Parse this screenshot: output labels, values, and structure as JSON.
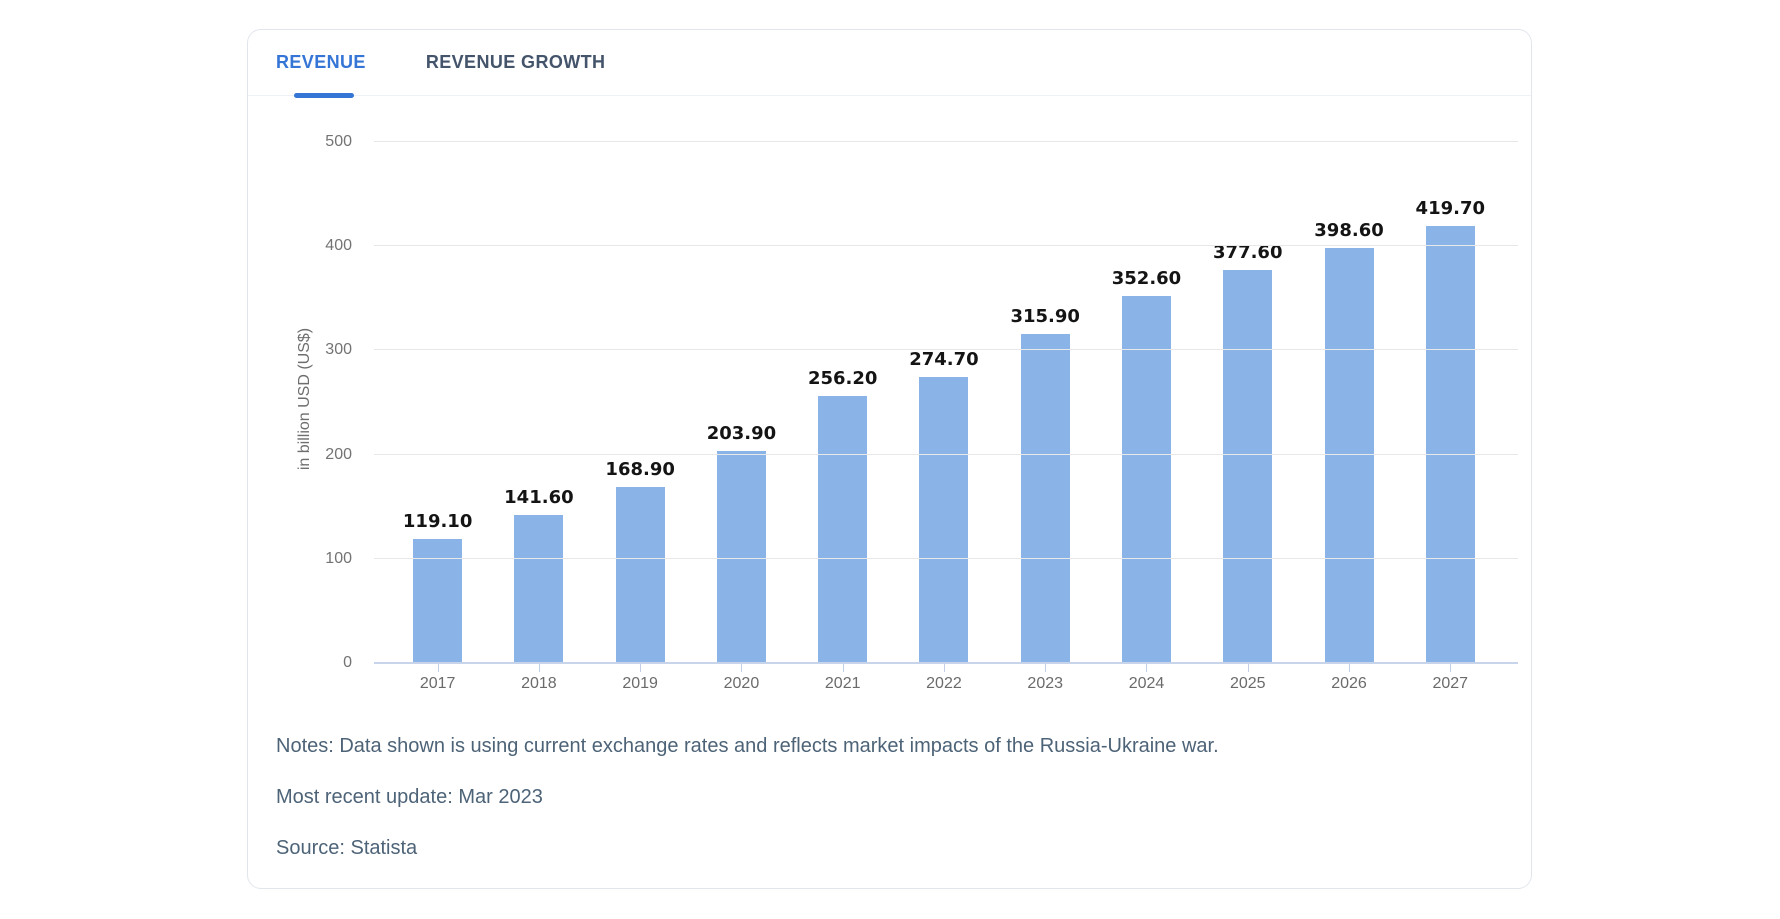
{
  "tabs": [
    {
      "label": "REVENUE",
      "active": true
    },
    {
      "label": "REVENUE GROWTH",
      "active": false
    }
  ],
  "chart_data": {
    "type": "bar",
    "categories": [
      "2017",
      "2018",
      "2019",
      "2020",
      "2021",
      "2022",
      "2023",
      "2024",
      "2025",
      "2026",
      "2027"
    ],
    "values": [
      119.1,
      141.6,
      168.9,
      203.9,
      256.2,
      274.7,
      315.9,
      352.6,
      377.6,
      398.6,
      419.7
    ],
    "value_labels": [
      "119.10",
      "141.60",
      "168.90",
      "203.90",
      "256.20",
      "274.70",
      "315.90",
      "352.60",
      "377.60",
      "398.60",
      "419.70"
    ],
    "title": "",
    "xlabel": "",
    "ylabel": "in billion USD (US$)",
    "ylim": [
      0,
      500
    ],
    "yticks": [
      0,
      100,
      200,
      300,
      400,
      500
    ],
    "grid": true,
    "legend": false,
    "bar_color": "#8ab4e7"
  },
  "notes": {
    "notes_line": "Notes: Data shown is using current exchange rates and reflects market impacts of the Russia-Ukraine war.",
    "update_line": "Most recent update: Mar 2023",
    "source_line": "Source: Statista"
  },
  "colors": {
    "accent_blue": "#3575d6",
    "tab_inactive": "#44546b",
    "bar_fill": "#8ab4e7",
    "grid_line": "#e8e8e8",
    "axis_line": "#c8d4ea",
    "axis_text": "#737373",
    "value_text": "#141414",
    "notes_text": "#4d6377",
    "card_border": "#e2e6ec"
  }
}
